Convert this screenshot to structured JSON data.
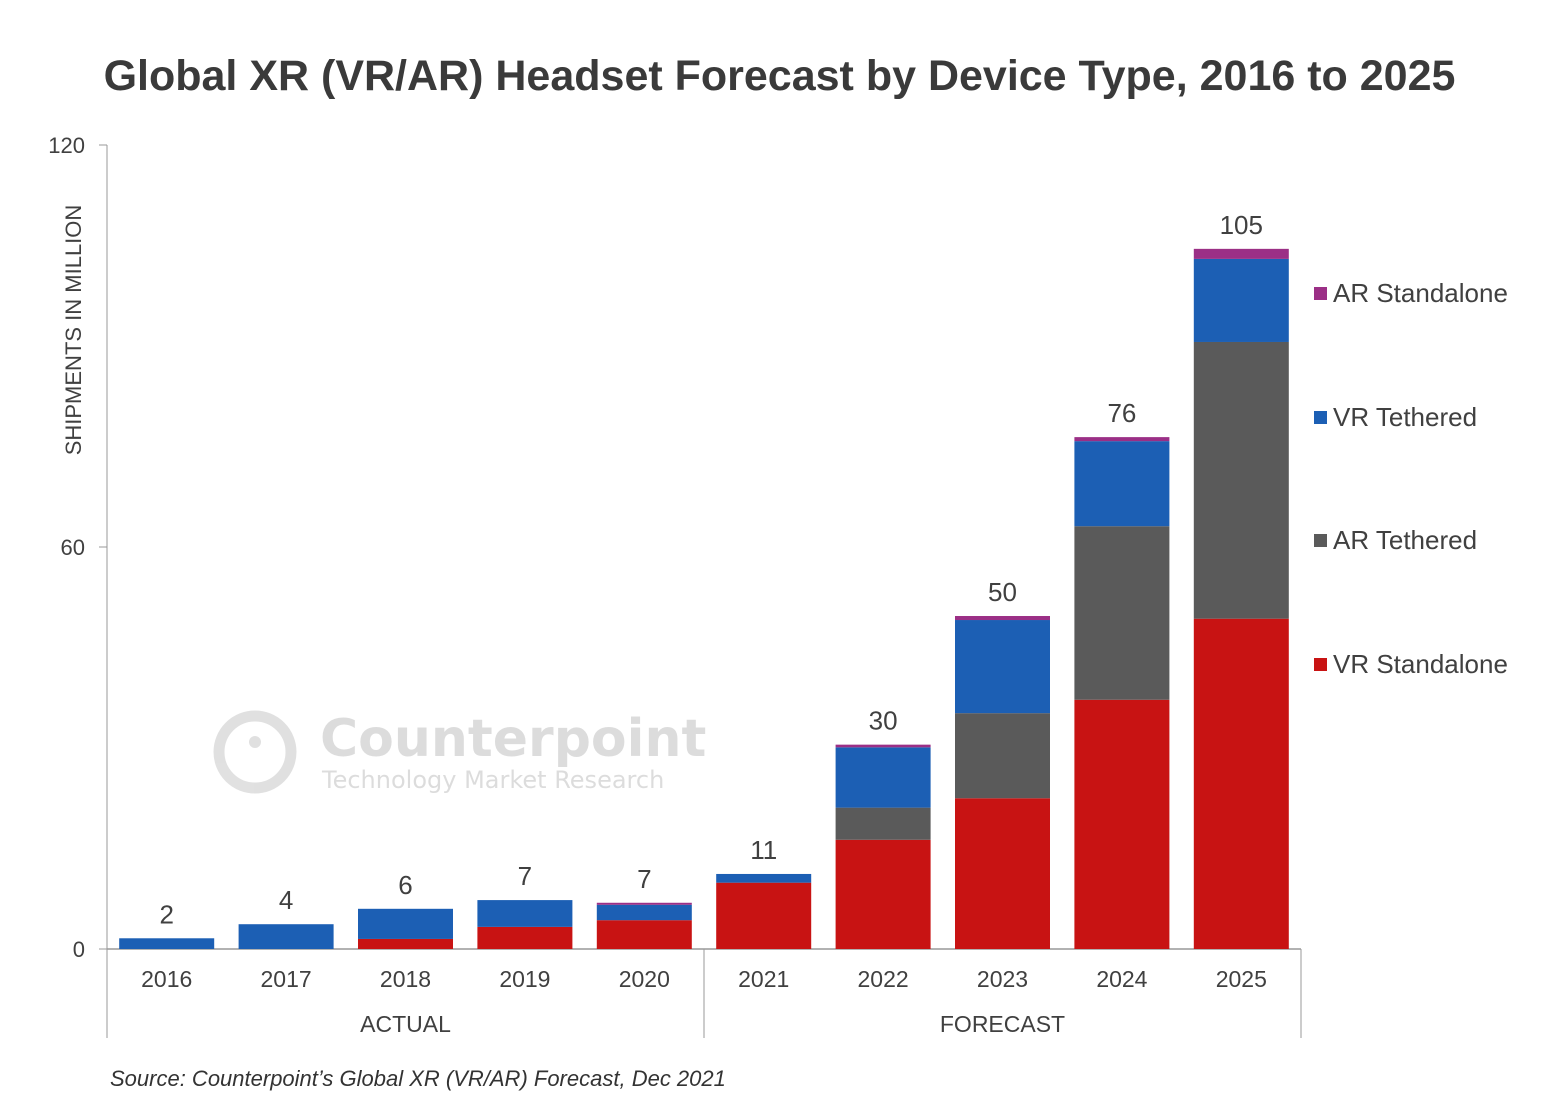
{
  "chart_data": {
    "type": "bar",
    "stacked": true,
    "title": "Global XR (VR/AR) Headset Forecast by Device Type, 2016 to 2025",
    "ylabel": "SHIPMENTS IN MILLION",
    "xlabel": "",
    "ylim": [
      0,
      120
    ],
    "yticks": [
      0,
      60,
      120
    ],
    "grid": false,
    "legend_position": "right",
    "categories": [
      "2016",
      "2017",
      "2018",
      "2019",
      "2020",
      "2021",
      "2022",
      "2023",
      "2024",
      "2025"
    ],
    "groups": [
      {
        "label": "ACTUAL",
        "categories": [
          "2016",
          "2017",
          "2018",
          "2019",
          "2020"
        ]
      },
      {
        "label": "FORECAST",
        "categories": [
          "2021",
          "2022",
          "2023",
          "2024",
          "2025"
        ]
      }
    ],
    "series": [
      {
        "name": "VR Standalone",
        "color": "#c81313",
        "values": [
          0,
          0,
          1.5,
          3.3,
          4.3,
          9.9,
          16.3,
          22.5,
          37.2,
          49.3
        ]
      },
      {
        "name": "AR Tethered",
        "color": "#5a5a5a",
        "values": [
          0,
          0,
          0,
          0,
          0,
          0,
          4.8,
          12.7,
          25.9,
          41.3
        ]
      },
      {
        "name": "VR Tethered",
        "color": "#1c5fb4",
        "values": [
          1.6,
          3.7,
          4.5,
          4.0,
          2.3,
          1.3,
          9.0,
          13.9,
          12.7,
          12.4
        ]
      },
      {
        "name": "AR Standalone",
        "color": "#9b2f86",
        "values": [
          0,
          0,
          0,
          0,
          0.3,
          0,
          0.4,
          0.6,
          0.6,
          1.5
        ]
      }
    ],
    "total_labels": [
      "2",
      "4",
      "6",
      "7",
      "7",
      "11",
      "30",
      "50",
      "76",
      "105"
    ],
    "legend_order": [
      "AR Standalone",
      "VR Tethered",
      "AR Tethered",
      "VR Standalone"
    ]
  },
  "source": "Source: Counterpoint’s Global XR (VR/AR) Forecast, Dec 2021",
  "watermark": {
    "name": "Counterpoint",
    "tagline": "Technology Market Research"
  }
}
